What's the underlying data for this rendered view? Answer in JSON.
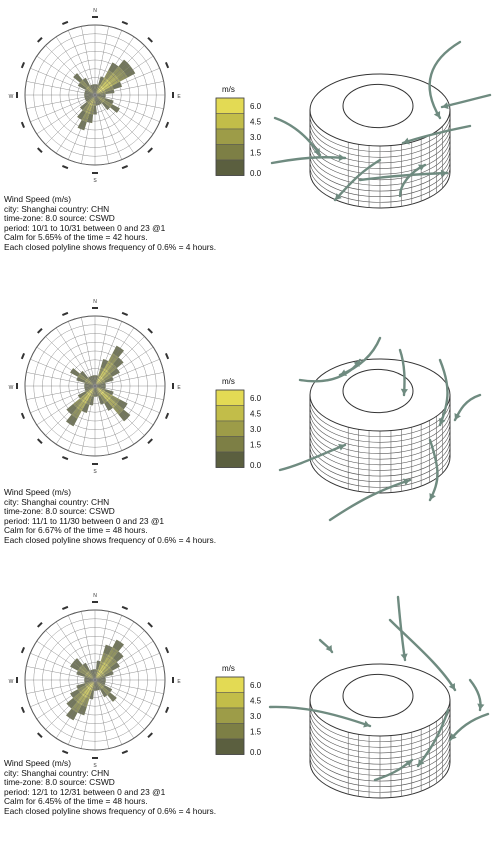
{
  "colors": {
    "legend_bins": [
      "#5b5f3f",
      "#7d7f45",
      "#9d9c48",
      "#c2bd49",
      "#e3da54"
    ],
    "rose_grid": "#5a5a5a",
    "arrow": "#6f8b80",
    "building_line": "#333333"
  },
  "compass": {
    "north": "N",
    "east": "E",
    "south": "S",
    "west": "W"
  },
  "legend": {
    "unit": "m/s",
    "ticks": [
      "6.0",
      "4.5",
      "3.0",
      "1.5",
      "0.0"
    ]
  },
  "panels": [
    {
      "title": "Wind Speed (m/s)",
      "location": "city: Shanghai country: CHN",
      "timezone": "time-zone: 8.0 source: CSWD",
      "period": "period: 10/1 to 10/31 between 0 and 23 @1",
      "calm": "Calm for 5.65% of the time = 42 hours.",
      "note": "Each closed polyline shows frequency of 0.6% = 4 hours."
    },
    {
      "title": "Wind Speed (m/s)",
      "location": "city: Shanghai country: CHN",
      "timezone": "time-zone: 8.0 source: CSWD",
      "period": "period: 11/1 to 11/30 between 0 and 23 @1",
      "calm": "Calm for 6.67% of the time = 48 hours.",
      "note": "Each closed polyline shows frequency of 0.6% = 4 hours."
    },
    {
      "title": "Wind Speed (m/s)",
      "location": "city: Shanghai country: CHN",
      "timezone": "time-zone: 8.0 source: CSWD",
      "period": "period: 12/1 to 12/31 between 0 and 23 @1",
      "calm": "Calm for 6.45% of the time = 48 hours.",
      "note": "Each closed polyline shows frequency of 0.6% = 4 hours."
    }
  ]
}
